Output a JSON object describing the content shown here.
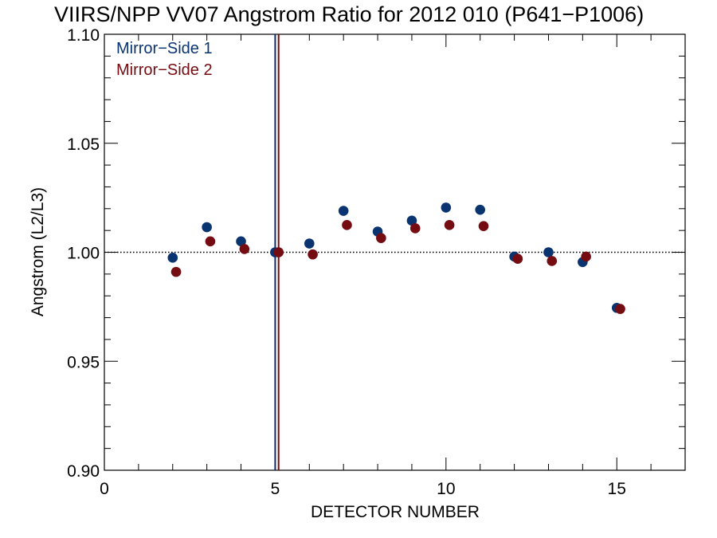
{
  "chart_data": {
    "type": "scatter",
    "title": "VIIRS/NPP VV07 Angstrom Ratio for 2012 010 (P641−P1006)",
    "xlabel": "DETECTOR NUMBER",
    "ylabel": "Angstrom (L2/L3)",
    "xlim": [
      0,
      17
    ],
    "ylim": [
      0.9,
      1.1
    ],
    "x_major_ticks": [
      0,
      5,
      10,
      15
    ],
    "x_tick_labels": [
      "0",
      "5",
      "10",
      "15"
    ],
    "x_minor_step": 1,
    "y_major_ticks": [
      0.9,
      0.95,
      1.0,
      1.05,
      1.1
    ],
    "y_tick_labels": [
      "0.90",
      "0.95",
      "1.00",
      "1.05",
      "1.10"
    ],
    "y_minor_step": 0.01,
    "grid": false,
    "legend_position": "top-left",
    "reference_line": {
      "y": 1.0,
      "style": "dotted"
    },
    "vertical_lines": [
      {
        "x": 5.0,
        "color": "#0a2d6e"
      },
      {
        "x": 5.1,
        "color": "#7a0a0a"
      }
    ],
    "series": [
      {
        "name": "Mirror−Side 1",
        "color": "#0a3470",
        "x": [
          2,
          3,
          4,
          5,
          6,
          7,
          8,
          9,
          10,
          11,
          12,
          13,
          14,
          15
        ],
        "y": [
          0.9975,
          1.0115,
          1.005,
          1.0,
          1.004,
          1.019,
          1.0095,
          1.0145,
          1.0205,
          1.0195,
          0.998,
          1.0,
          0.9955,
          0.9745
        ]
      },
      {
        "name": "Mirror−Side 2",
        "color": "#750c12",
        "x": [
          2.1,
          3.1,
          4.1,
          5.1,
          6.1,
          7.1,
          8.1,
          9.1,
          10.1,
          11.1,
          12.1,
          13.1,
          14.1,
          15.1
        ],
        "y": [
          0.991,
          1.005,
          1.0015,
          1.0,
          0.999,
          1.0125,
          1.0065,
          1.011,
          1.0125,
          1.012,
          0.997,
          0.996,
          0.998,
          0.974
        ]
      }
    ]
  }
}
